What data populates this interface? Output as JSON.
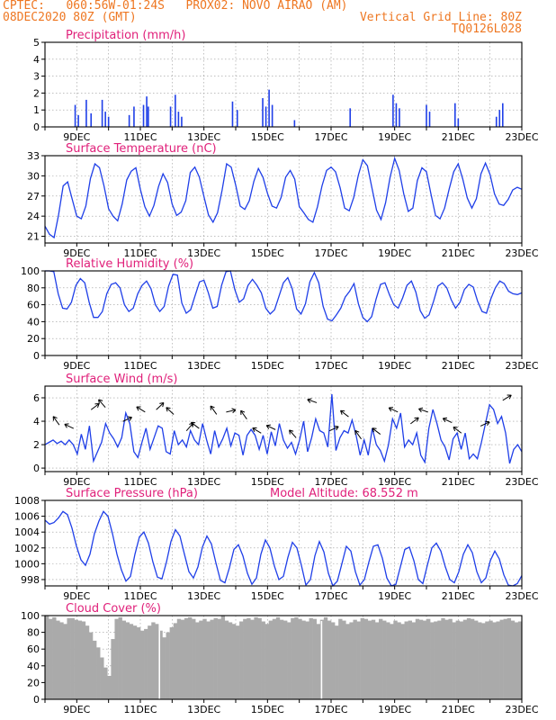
{
  "header": {
    "line1_left": "CPTEC:   060:56W-01:24S   PROX02: NOVO AIRAO (AM)",
    "line2_left": "08DEC2020 80Z (GMT)",
    "line2_right": "Vertical Grid Line: 80Z",
    "line3_right": "TQ0126L028"
  },
  "colors": {
    "header": "#ee7722",
    "title": "#e0207a",
    "series": "#1f3fe8",
    "cloud": "#aaaaaa",
    "axis": "#000000"
  },
  "x_tick_labels": [
    "9DEC",
    "11DEC",
    "13DEC",
    "15DEC",
    "17DEC",
    "19DEC",
    "21DEC",
    "23DEC"
  ],
  "chart_data": [
    {
      "type": "bar",
      "title": "Precipitation (mm/h)",
      "ylim": [
        0,
        5
      ],
      "yticks": [
        "0",
        "1",
        "2",
        "3",
        "4",
        "5"
      ],
      "grid": true,
      "events": [
        {
          "x": 0.95,
          "v": 1.3
        },
        {
          "x": 1.05,
          "v": 0.7
        },
        {
          "x": 1.3,
          "v": 1.6
        },
        {
          "x": 1.45,
          "v": 0.8
        },
        {
          "x": 1.8,
          "v": 1.6
        },
        {
          "x": 1.9,
          "v": 0.9
        },
        {
          "x": 2.0,
          "v": 0.6
        },
        {
          "x": 2.65,
          "v": 0.7
        },
        {
          "x": 2.8,
          "v": 1.2
        },
        {
          "x": 3.1,
          "v": 1.3
        },
        {
          "x": 3.2,
          "v": 1.8
        },
        {
          "x": 3.25,
          "v": 1.2
        },
        {
          "x": 3.95,
          "v": 1.2
        },
        {
          "x": 4.1,
          "v": 1.9
        },
        {
          "x": 4.2,
          "v": 0.9
        },
        {
          "x": 4.3,
          "v": 0.6
        },
        {
          "x": 5.9,
          "v": 1.5
        },
        {
          "x": 6.05,
          "v": 1.0
        },
        {
          "x": 6.85,
          "v": 1.7
        },
        {
          "x": 6.95,
          "v": 1.2
        },
        {
          "x": 7.05,
          "v": 2.2
        },
        {
          "x": 7.15,
          "v": 1.3
        },
        {
          "x": 7.85,
          "v": 0.4
        },
        {
          "x": 9.6,
          "v": 1.1
        },
        {
          "x": 10.95,
          "v": 1.9
        },
        {
          "x": 11.05,
          "v": 1.4
        },
        {
          "x": 11.15,
          "v": 1.1
        },
        {
          "x": 12.0,
          "v": 1.3
        },
        {
          "x": 12.1,
          "v": 0.9
        },
        {
          "x": 12.9,
          "v": 1.4
        },
        {
          "x": 13.0,
          "v": 0.5
        },
        {
          "x": 14.2,
          "v": 0.6
        },
        {
          "x": 14.3,
          "v": 1.0
        },
        {
          "x": 14.4,
          "v": 1.4
        }
      ]
    },
    {
      "type": "line",
      "title": "Surface Temperature (nC)",
      "ylim": [
        20,
        33
      ],
      "yticks": [
        "21",
        "24",
        "27",
        "30",
        "33"
      ],
      "grid": true,
      "values": [
        22.5,
        21.3,
        20.8,
        24.2,
        28.5,
        29.1,
        26.5,
        24.0,
        23.6,
        25.5,
        29.6,
        31.8,
        31.2,
        28.5,
        25.1,
        24.0,
        23.3,
        25.8,
        29.4,
        30.7,
        31.2,
        28.0,
        25.4,
        24.0,
        25.6,
        28.4,
        30.3,
        29.0,
        25.8,
        24.1,
        24.6,
        26.3,
        30.5,
        31.3,
        29.8,
        26.9,
        24.2,
        23.1,
        24.5,
        27.9,
        31.8,
        31.3,
        28.6,
        25.5,
        25.0,
        26.3,
        29.2,
        31.1,
        29.8,
        27.4,
        25.5,
        25.2,
        26.8,
        29.8,
        30.8,
        29.5,
        25.4,
        24.5,
        23.5,
        23.1,
        25.4,
        28.5,
        30.8,
        31.3,
        30.6,
        28.2,
        25.2,
        24.8,
        26.8,
        30.1,
        32.4,
        31.5,
        28.2,
        24.9,
        23.5,
        26.0,
        29.8,
        32.6,
        30.8,
        27.3,
        24.7,
        25.2,
        29.3,
        31.2,
        30.6,
        27.3,
        24.1,
        23.6,
        25.2,
        28.0,
        30.6,
        31.8,
        29.5,
        26.7,
        25.2,
        26.6,
        30.3,
        31.9,
        30.2,
        27.3,
        25.8,
        25.6,
        26.5,
        27.9,
        28.3,
        28.0
      ],
      "x_end_days": 15.0
    },
    {
      "type": "line",
      "title": "Relative Humidity (%)",
      "ylim": [
        0,
        100
      ],
      "yticks": [
        "0",
        "20",
        "40",
        "60",
        "80",
        "100"
      ],
      "grid": true,
      "values": [
        100,
        100,
        99,
        73,
        56,
        55,
        63,
        83,
        91,
        86,
        63,
        45,
        45,
        52,
        73,
        84,
        86,
        80,
        60,
        52,
        56,
        73,
        83,
        88,
        79,
        60,
        52,
        58,
        82,
        96,
        95,
        62,
        50,
        54,
        71,
        87,
        89,
        74,
        56,
        58,
        83,
        99,
        100,
        78,
        63,
        67,
        83,
        90,
        83,
        74,
        56,
        49,
        54,
        70,
        86,
        92,
        79,
        55,
        49,
        61,
        87,
        98,
        86,
        58,
        43,
        41,
        48,
        56,
        69,
        76,
        85,
        61,
        45,
        40,
        46,
        67,
        84,
        86,
        72,
        60,
        56,
        68,
        83,
        88,
        75,
        53,
        44,
        48,
        64,
        82,
        86,
        80,
        66,
        56,
        63,
        78,
        84,
        81,
        64,
        52,
        50,
        67,
        80,
        88,
        85,
        76,
        73,
        72,
        74
      ]
    },
    {
      "type": "line",
      "title": "Surface Wind (m/s)",
      "ylim": [
        -0.3,
        7
      ],
      "yticks": [
        "0",
        "2",
        "4",
        "6"
      ],
      "grid": true,
      "values": [
        2.0,
        2.2,
        2.4,
        2.1,
        2.3,
        2.0,
        2.4,
        2.0,
        1.2,
        2.9,
        1.6,
        3.6,
        0.6,
        1.4,
        2.2,
        3.8,
        3.0,
        2.5,
        1.8,
        2.6,
        4.7,
        3.8,
        1.4,
        0.9,
        2.2,
        3.4,
        1.6,
        2.6,
        3.6,
        3.4,
        1.4,
        1.2,
        3.2,
        2.0,
        2.4,
        1.8,
        3.2,
        2.4,
        2.0,
        3.8,
        2.4,
        1.2,
        3.2,
        1.8,
        2.5,
        3.4,
        1.9,
        3.0,
        2.8,
        1.1,
        2.8,
        3.3,
        2.8,
        1.6,
        2.8,
        1.2,
        3.1,
        1.9,
        3.8,
        2.4,
        1.7,
        2.2,
        1.2,
        2.4,
        4.0,
        1.4,
        2.6,
        4.2,
        3.2,
        3.0,
        1.8,
        6.3,
        1.5,
        2.6,
        3.2,
        3.0,
        4.1,
        2.8,
        1.1,
        2.4,
        1.1,
        3.4,
        2.0,
        1.5,
        0.6,
        2.0,
        4.2,
        3.4,
        4.7,
        1.8,
        2.4,
        2.0,
        3.0,
        1.1,
        0.5,
        3.4,
        5.0,
        3.8,
        2.4,
        1.8,
        0.7,
        2.5,
        3.0,
        1.6,
        3.0,
        0.8,
        1.2,
        0.8,
        2.2,
        3.8,
        5.4,
        5.0,
        3.8,
        4.4,
        3.0,
        0.4,
        1.6,
        2.0,
        1.4
      ],
      "arrows": [
        {
          "x": 0.45,
          "dir": -0.9
        },
        {
          "x": 0.9,
          "dir": -0.4
        },
        {
          "x": 1.45,
          "dir": 0.6
        },
        {
          "x": 1.9,
          "dir": -0.8
        },
        {
          "x": 2.45,
          "dir": 0.4
        },
        {
          "x": 3.15,
          "dir": -0.5
        },
        {
          "x": 3.5,
          "dir": 0.7
        },
        {
          "x": 4.05,
          "dir": -0.7
        },
        {
          "x": 4.45,
          "dir": 0.8
        },
        {
          "x": 4.85,
          "dir": -0.6
        },
        {
          "x": 5.4,
          "dir": -0.9
        },
        {
          "x": 5.7,
          "dir": 0.2
        },
        {
          "x": 6.35,
          "dir": -0.9
        },
        {
          "x": 6.8,
          "dir": -0.5
        },
        {
          "x": 7.25,
          "dir": -0.4
        },
        {
          "x": 7.9,
          "dir": -0.8
        },
        {
          "x": 8.55,
          "dir": -0.3
        },
        {
          "x": 8.95,
          "dir": 0.4
        },
        {
          "x": 9.55,
          "dir": -0.6
        },
        {
          "x": 9.95,
          "dir": -0.9
        },
        {
          "x": 10.55,
          "dir": -0.6
        },
        {
          "x": 11.1,
          "dir": -0.4
        },
        {
          "x": 11.5,
          "dir": 0.6
        },
        {
          "x": 12.05,
          "dir": -0.3
        },
        {
          "x": 12.8,
          "dir": -0.4
        },
        {
          "x": 13.1,
          "dir": -0.6
        },
        {
          "x": 13.7,
          "dir": 0.4
        },
        {
          "x": 14.4,
          "dir": 0.5
        }
      ]
    },
    {
      "type": "line",
      "title": "Surface Pressure (hPa)",
      "annotation": "Model Altitude: 68.552 m",
      "ylim": [
        997.2,
        1008
      ],
      "yticks": [
        "998",
        "1000",
        "1002",
        "1004",
        "1006",
        "1008"
      ],
      "grid": true,
      "values": [
        1005.5,
        1005.0,
        1005.2,
        1005.8,
        1006.6,
        1006.2,
        1004.5,
        1002.2,
        1000.5,
        999.8,
        1001.2,
        1003.8,
        1005.4,
        1006.6,
        1006.0,
        1003.8,
        1001.2,
        999.2,
        997.8,
        998.4,
        1001.2,
        1003.4,
        1004.0,
        1002.6,
        1000.2,
        998.3,
        998.1,
        1000.2,
        1002.8,
        1004.3,
        1003.5,
        1001.2,
        999.0,
        998.2,
        999.6,
        1002.1,
        1003.5,
        1002.5,
        1000.1,
        997.9,
        997.6,
        999.5,
        1001.8,
        1002.4,
        1001.0,
        998.8,
        997.4,
        998.2,
        1001.2,
        1003.0,
        1002.0,
        999.7,
        998.0,
        998.4,
        1000.8,
        1002.7,
        1002.0,
        999.8,
        997.3,
        998.0,
        1001.0,
        1002.8,
        1001.5,
        998.8,
        997.0,
        997.8,
        1000.0,
        1002.2,
        1001.6,
        999.0,
        997.3,
        998.0,
        1000.2,
        1002.2,
        1002.4,
        1000.7,
        998.2,
        996.8,
        997.4,
        999.6,
        1001.8,
        1002.1,
        1000.4,
        998.0,
        997.5,
        999.8,
        1002.0,
        1002.6,
        1001.6,
        999.6,
        998.0,
        997.6,
        999.0,
        1001.2,
        1002.4,
        1001.4,
        999.0,
        997.6,
        998.2,
        1000.4,
        1001.6,
        1000.6,
        998.6,
        997.3,
        996.8,
        997.5,
        998.5
      ]
    },
    {
      "type": "bar",
      "title": "Cloud Cover (%)",
      "ylim": [
        0,
        100
      ],
      "yticks": [
        "0",
        "20",
        "40",
        "60",
        "80",
        "100"
      ],
      "grid": true,
      "profile": [
        100,
        96,
        98,
        94,
        92,
        90,
        97,
        97,
        95,
        94,
        93,
        88,
        80,
        70,
        62,
        50,
        38,
        28,
        72,
        96,
        98,
        94,
        92,
        90,
        88,
        86,
        82,
        84,
        88,
        92,
        90,
        82,
        74,
        80,
        86,
        91,
        96,
        95,
        97,
        98,
        96,
        92,
        94,
        96,
        93,
        95,
        97,
        96,
        100,
        94,
        92,
        90,
        88,
        93,
        96,
        97,
        95,
        98,
        97,
        93,
        90,
        94,
        96,
        98,
        95,
        94,
        92,
        97,
        98,
        96,
        94,
        93,
        97,
        96,
        90,
        95,
        98,
        94,
        92,
        88,
        96,
        94,
        90,
        92,
        95,
        93,
        97,
        96,
        94,
        95,
        92,
        96,
        94,
        92,
        90,
        94,
        92,
        90,
        93,
        94,
        92,
        96,
        95,
        94,
        96,
        92,
        93,
        94,
        97,
        95,
        96,
        92,
        94,
        93,
        95,
        97,
        96,
        94,
        92,
        91,
        93,
        94,
        92,
        93,
        95,
        96,
        97,
        94,
        92,
        93
      ],
      "drop_x": [
        3.6,
        8.7
      ]
    }
  ]
}
